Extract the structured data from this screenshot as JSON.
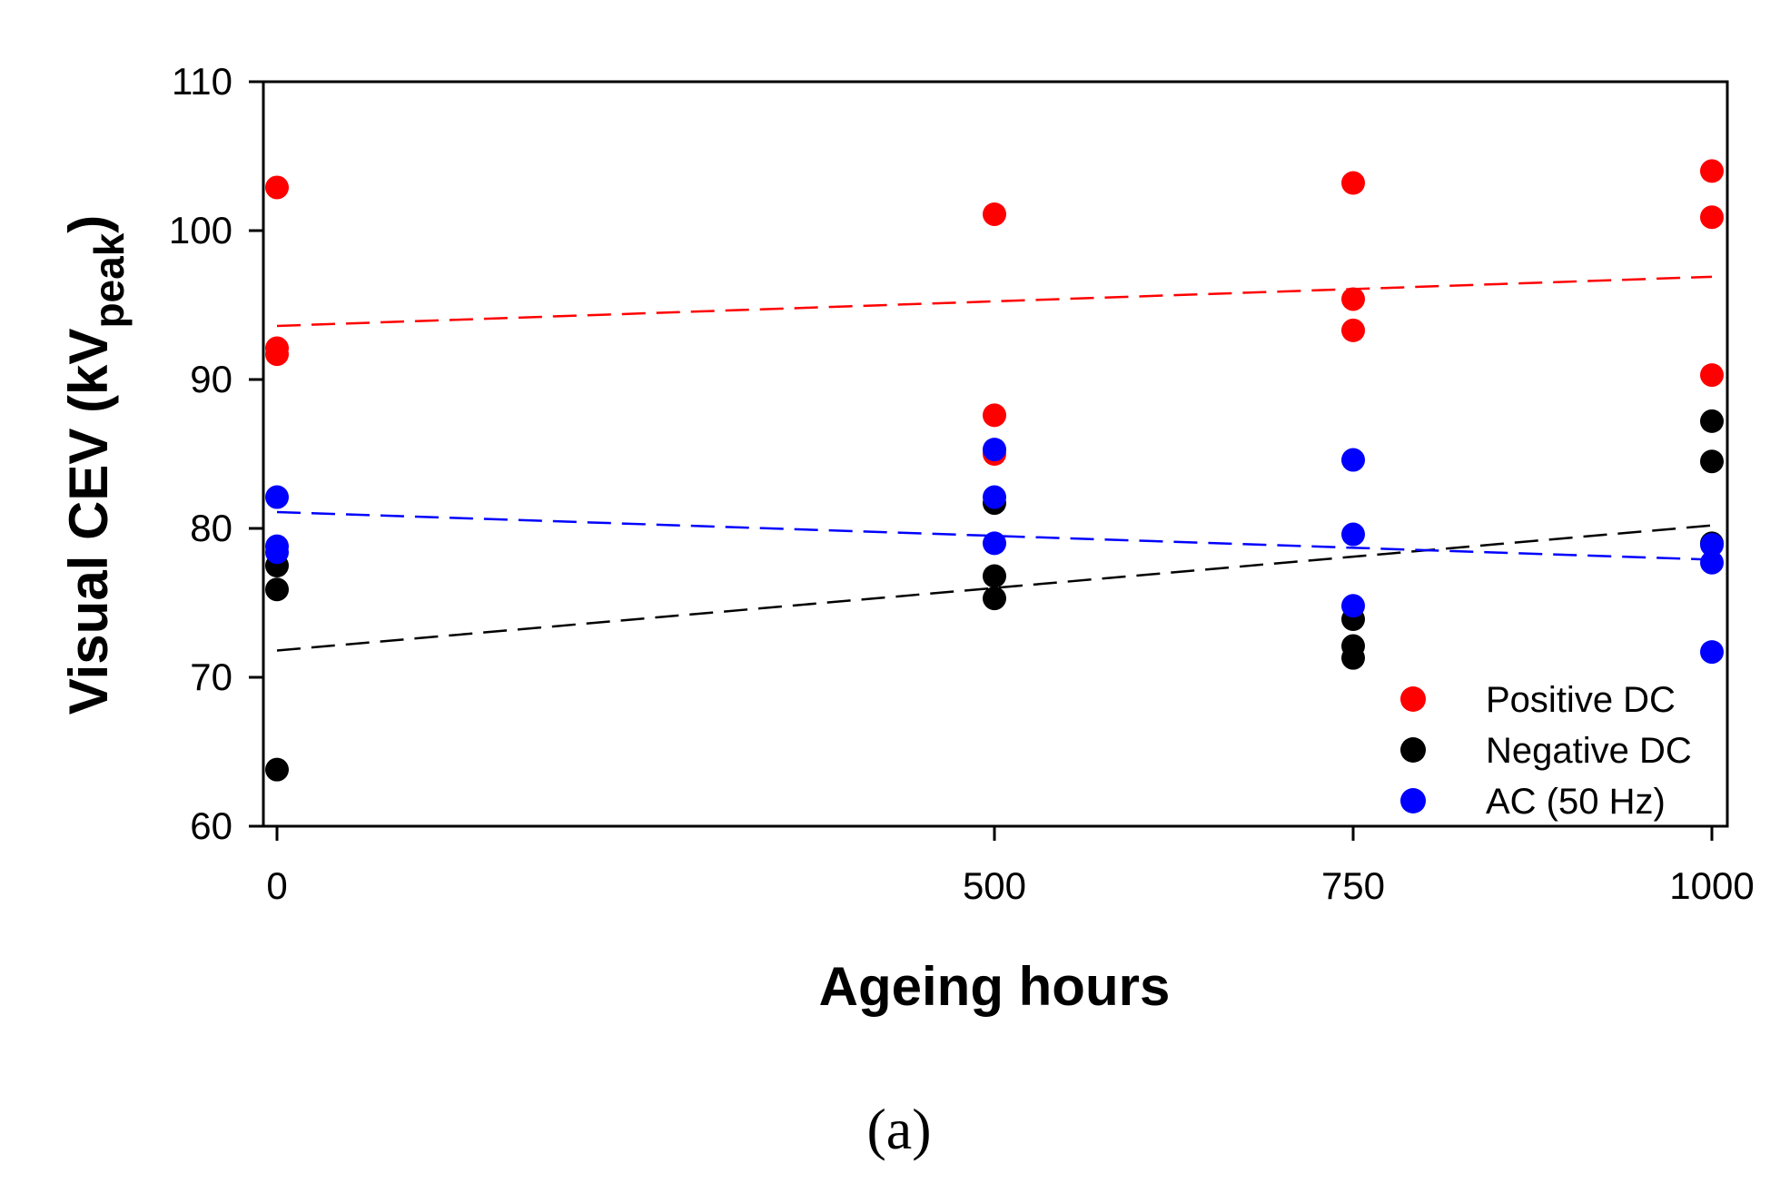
{
  "chart_data": {
    "type": "scatter",
    "xlabel": "Ageing hours",
    "ylabel_main": "Visual CEV (kV",
    "ylabel_sub": "peak",
    "ylabel_close": ")",
    "caption": "(a)",
    "xlim": [
      0,
      1000
    ],
    "ylim": [
      60,
      110
    ],
    "xticks": [
      0,
      500,
      750,
      1000
    ],
    "yticks": [
      60,
      70,
      80,
      90,
      100,
      110
    ],
    "legend_position": "bottom-right",
    "series": [
      {
        "name": "Positive DC",
        "color": "#ff0000",
        "x": [
          0,
          0,
          0,
          500,
          500,
          500,
          750,
          750,
          750,
          1000,
          1000,
          1000
        ],
        "y": [
          102.9,
          92.1,
          91.7,
          101.1,
          87.6,
          85.0,
          103.2,
          95.4,
          93.3,
          104.0,
          100.9,
          90.3
        ],
        "trend": [
          93.6,
          96.9
        ]
      },
      {
        "name": "Negative DC",
        "color": "#000000",
        "x": [
          0,
          0,
          0,
          500,
          500,
          500,
          750,
          750,
          750,
          1000,
          1000,
          1000
        ],
        "y": [
          77.5,
          75.9,
          63.8,
          81.7,
          76.8,
          75.3,
          73.9,
          72.1,
          71.3,
          87.2,
          84.5,
          79.0
        ],
        "trend": [
          71.8,
          80.2
        ]
      },
      {
        "name": "AC (50 Hz)",
        "color": "#0000ff",
        "x": [
          0,
          0,
          0,
          500,
          500,
          500,
          750,
          750,
          750,
          1000,
          1000,
          1000
        ],
        "y": [
          82.1,
          78.8,
          78.4,
          85.3,
          82.1,
          79.0,
          84.6,
          79.6,
          74.8,
          78.9,
          77.7,
          71.7
        ],
        "trend": [
          81.1,
          77.9
        ]
      }
    ]
  }
}
